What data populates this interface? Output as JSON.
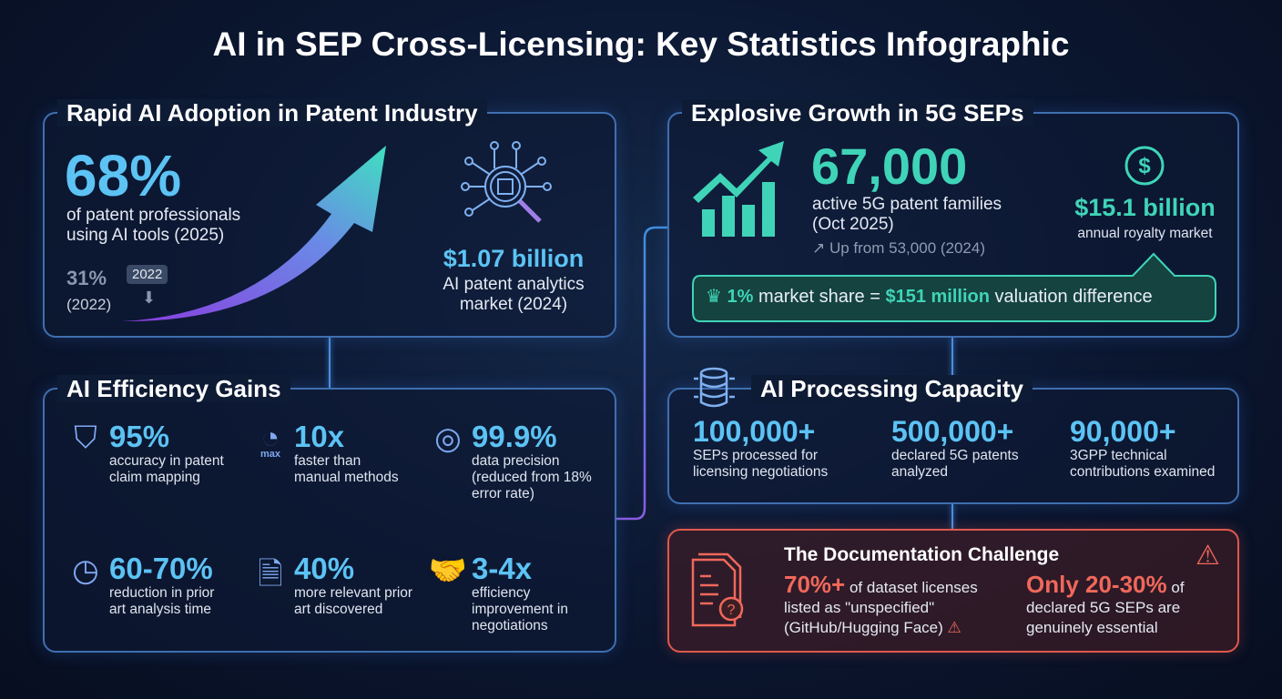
{
  "title": "AI in SEP Cross-Licensing: Key Statistics Infographic",
  "adoption": {
    "title": "Rapid AI Adoption in Patent Industry",
    "main_value": "68%",
    "main_desc_1": "of patent professionals",
    "main_desc_2": "using AI tools (2025)",
    "past_value": "31%",
    "past_year": "(2022)",
    "past_tag": "2022",
    "market_value": "$1.07 billion",
    "market_desc_1": "AI patent analytics",
    "market_desc_2": "market (2024)"
  },
  "efficiency": {
    "title": "AI Efficiency Gains",
    "items": [
      {
        "icon": "shield-check-icon",
        "value": "95%",
        "desc": [
          "accuracy in patent",
          "claim mapping"
        ]
      },
      {
        "icon": "speedometer-icon",
        "icon_label": "max",
        "value": "10x",
        "desc": [
          "faster than",
          "manual methods"
        ]
      },
      {
        "icon": "target-icon",
        "value": "99.9%",
        "desc": [
          "data precision",
          "(reduced from 18%",
          "error rate)"
        ]
      },
      {
        "icon": "clock-icon",
        "value": "60-70%",
        "desc": [
          "reduction in prior",
          "art analysis time"
        ]
      },
      {
        "icon": "document-search-icon",
        "value": "40%",
        "desc": [
          "more relevant prior",
          "art discovered"
        ]
      },
      {
        "icon": "handshake-icon",
        "value": "3-4x",
        "desc": [
          "efficiency",
          "improvement in",
          "negotiations"
        ]
      }
    ]
  },
  "growth": {
    "title": "Explosive Growth in 5G SEPs",
    "main_value": "67,000",
    "desc_1": "active 5G patent families",
    "desc_2": "(Oct 2025)",
    "up_from": "Up from 53,000 (2024)",
    "royalty_value": "$15.1 billion",
    "royalty_desc": "annual royalty market",
    "callout_share": "1%",
    "callout_mid": " market share = ",
    "callout_value": "$151 million",
    "callout_end": " valuation difference"
  },
  "processing": {
    "title": "AI Processing Capacity",
    "items": [
      {
        "value": "100,000+",
        "desc": [
          "SEPs processed for",
          "licensing negotiations"
        ]
      },
      {
        "value": "500,000+",
        "desc": [
          "declared 5G patents",
          "analyzed"
        ]
      },
      {
        "value": "90,000+",
        "desc": [
          "3GPP technical",
          "contributions examined"
        ]
      }
    ]
  },
  "challenge": {
    "title": "The Documentation Challenge",
    "left_value": "70%+",
    "left_desc_1": " of dataset licenses",
    "left_desc_2": "listed as \"unspecified\"",
    "left_desc_3": "(GitHub/Hugging Face)",
    "right_value": "Only 20-30%",
    "right_desc_1": " of",
    "right_desc_2": "declared 5G SEPs are",
    "right_desc_3": "genuinely essential"
  },
  "colors": {
    "blue": "#5cc3f4",
    "teal": "#3fd4b8",
    "red": "#f0685a",
    "purple": "#8a5ce0"
  }
}
